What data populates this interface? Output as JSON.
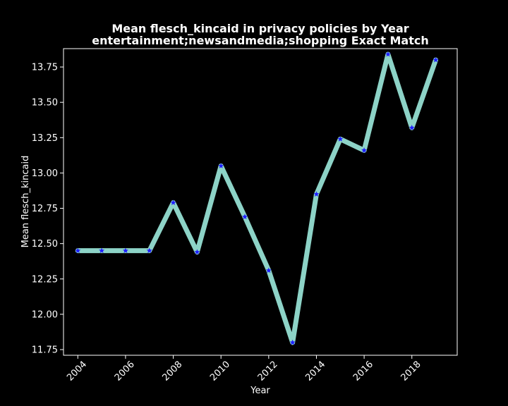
{
  "chart_data": {
    "type": "line",
    "title": "Mean flesch_kincaid in privacy policies by Year",
    "subtitle": "entertainment;newsandmedia;shopping Exact Match",
    "xlabel": "Year",
    "ylabel": "Mean flesch_kincaid",
    "xlim": [
      2003.4,
      2019.9
    ],
    "ylim": [
      11.71,
      13.88
    ],
    "xticks": [
      "2004",
      "2006",
      "2008",
      "2010",
      "2012",
      "2014",
      "2016",
      "2018"
    ],
    "xtick_values": [
      2004,
      2006,
      2008,
      2010,
      2012,
      2014,
      2016,
      2018
    ],
    "yticks": [
      "11.75",
      "12.00",
      "12.25",
      "12.50",
      "12.75",
      "13.00",
      "13.25",
      "13.50",
      "13.75"
    ],
    "ytick_values": [
      11.75,
      12.0,
      12.25,
      12.5,
      12.75,
      13.0,
      13.25,
      13.5,
      13.75
    ],
    "grid": false,
    "legend": "none",
    "series": [
      {
        "x": [
          2004,
          2005,
          2006,
          2007,
          2008,
          2009,
          2010,
          2011,
          2012,
          2013,
          2014,
          2015,
          2016,
          2017,
          2018,
          2019
        ],
        "values": [
          12.45,
          12.45,
          12.45,
          12.45,
          12.79,
          12.44,
          13.05,
          12.69,
          12.31,
          11.8,
          12.85,
          13.24,
          13.16,
          13.84,
          13.32,
          13.8
        ],
        "line_color": "#8dd3c7",
        "marker_color": "#1f1fff",
        "marker": "star"
      }
    ],
    "colors": {
      "background": "#000000",
      "axes": "#ffffff",
      "text": "#ffffff"
    }
  }
}
